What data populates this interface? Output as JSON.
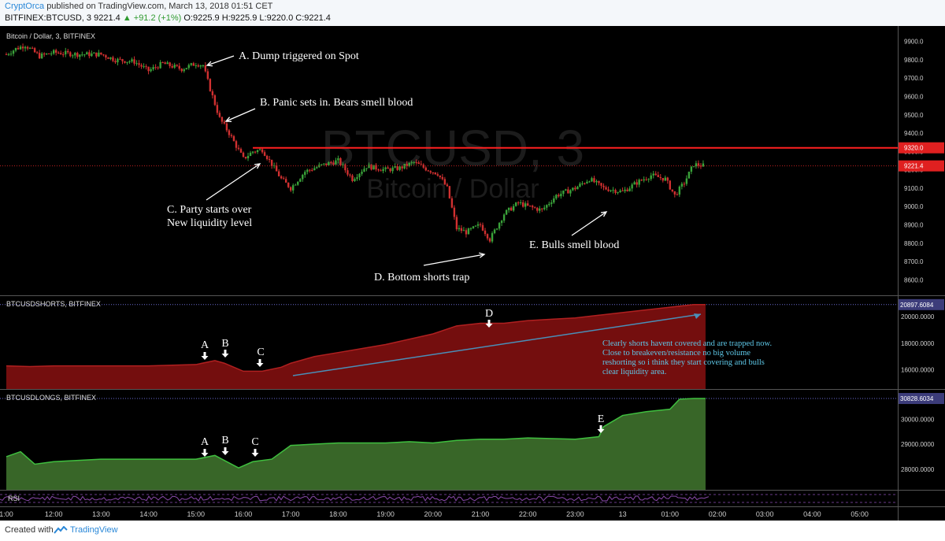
{
  "header": {
    "author": "CryptOrca",
    "published": "published on TradingView.com, March 13, 2018 01:51 CET",
    "symbol_line": "BITFINEX:BTCUSD, 3",
    "price": "9221.4",
    "change": "+91.2 (+1%)",
    "ohlc": "O:9225.9 H:9225.9 L:9220.0 C:9221.4"
  },
  "footer": {
    "created_with": "Created with",
    "brand": "TradingView"
  },
  "colors": {
    "background": "#000000",
    "candle_up": "#3aa33a",
    "candle_down": "#d03030",
    "shorts_fill": "#7a0f0f",
    "longs_fill": "#3b6b2a",
    "resistance": "#ff2020",
    "annotation_text": "#ffffff",
    "note_text": "#5ec8e8",
    "axis_text": "#cfcfcf"
  },
  "chart_data": [
    {
      "type": "candlestick",
      "title": "Bitcoin / Dollar, 3, BITFINEX",
      "watermark": "BTCUSD, 3",
      "watermark_sub": "Bitcoin / Dollar",
      "ylim": [
        8550,
        9950
      ],
      "y_ticks": [
        "9900.0",
        "9800.0",
        "9700.0",
        "9600.0",
        "9500.0",
        "9400.0",
        "9300.0",
        "9200.0",
        "9100.0",
        "9000.0",
        "8900.0",
        "8800.0",
        "8700.0",
        "8600.0"
      ],
      "x_ticks": [
        "1:00",
        "12:00",
        "13:00",
        "14:00",
        "15:00",
        "16:00",
        "17:00",
        "18:00",
        "19:00",
        "20:00",
        "21:00",
        "22:00",
        "23:00",
        "13",
        "01:00",
        "02:00",
        "03:00",
        "04:00",
        "05:00"
      ],
      "x_tick_hours": [
        11,
        12,
        13,
        14,
        15,
        16,
        17,
        18,
        19,
        20,
        21,
        22,
        23,
        24,
        25,
        26,
        27,
        28,
        29
      ],
      "path_hours": [
        11.0,
        11.2,
        11.4,
        11.7,
        12.0,
        12.5,
        13.0,
        13.3,
        13.7,
        14.0,
        14.3,
        14.7,
        15.0,
        15.15,
        15.3,
        15.5,
        15.7,
        16.0,
        16.2,
        16.4,
        16.6,
        16.8,
        17.0,
        17.3,
        17.6,
        18.0,
        18.3,
        18.6,
        19.0,
        19.3,
        19.6,
        19.9,
        20.1,
        20.3,
        20.5,
        20.7,
        21.0,
        21.2,
        21.5,
        21.8,
        22.0,
        22.3,
        22.6,
        23.0,
        23.3,
        23.6,
        24.0,
        24.3,
        24.6,
        24.9,
        25.1,
        25.3,
        25.5,
        25.75
      ],
      "path_prices": [
        9830,
        9860,
        9880,
        9820,
        9840,
        9830,
        9830,
        9800,
        9790,
        9740,
        9780,
        9750,
        9780,
        9770,
        9640,
        9480,
        9400,
        9260,
        9300,
        9310,
        9230,
        9150,
        9100,
        9190,
        9220,
        9250,
        9150,
        9220,
        9200,
        9210,
        9240,
        9200,
        9180,
        9100,
        8880,
        8860,
        8900,
        8820,
        8960,
        9020,
        9000,
        8980,
        9060,
        9100,
        9150,
        9100,
        9080,
        9130,
        9170,
        9150,
        9060,
        9130,
        9230,
        9221
      ],
      "resistance_label": "9320.0",
      "resistance": 9320,
      "last_price_label": "9221.4",
      "last_price": 9221.4,
      "annotations": [
        {
          "text": "A. Dump triggered on Spot"
        },
        {
          "text": "B. Panic sets in. Bears smell blood"
        },
        {
          "text": "C. Party starts over"
        },
        {
          "text": "New liquidity level"
        },
        {
          "text": "D. Bottom shorts trap"
        },
        {
          "text": "E. Bulls smell blood"
        }
      ]
    },
    {
      "type": "area",
      "title": "BTCUSDSHORTS, BITFINEX",
      "ylim": [
        14800,
        21300
      ],
      "y_ticks": [
        "20000.0000",
        "18000.0000",
        "16000.0000"
      ],
      "last_value_label": "20897.6084",
      "x_hours": [
        11.0,
        11.5,
        12.0,
        13.0,
        14.0,
        14.5,
        15.0,
        15.4,
        15.6,
        16.0,
        16.4,
        16.8,
        17.0,
        17.5,
        18.0,
        18.5,
        19.0,
        19.5,
        20.0,
        20.5,
        21.0,
        21.5,
        22.0,
        22.5,
        23.0,
        23.5,
        24.0,
        24.5,
        25.0,
        25.5,
        25.75
      ],
      "values": [
        16300,
        16250,
        16300,
        16300,
        16300,
        16350,
        16400,
        16700,
        16500,
        15900,
        15900,
        16200,
        16500,
        17000,
        17300,
        17600,
        17900,
        18300,
        18700,
        19300,
        19500,
        19500,
        19700,
        19800,
        19900,
        20100,
        20300,
        20500,
        20700,
        20900,
        20897.6
      ],
      "letters": [
        "A",
        "B",
        "C",
        "D"
      ],
      "note": [
        "Clearly shorts havent covered and are trapped now.",
        "Close to breakeven/resistance no big volume",
        "reshorting so i think they start covering and bulls",
        "clear liquidity area."
      ]
    },
    {
      "type": "area",
      "title": "BTCUSDLONGS, BITFINEX",
      "ylim": [
        27300,
        31050
      ],
      "y_ticks": [
        "30000.0000",
        "29000.0000",
        "28000.0000"
      ],
      "last_value_label": "30828.6034",
      "x_hours": [
        11.0,
        11.3,
        11.6,
        12.0,
        13.0,
        14.0,
        15.0,
        15.4,
        15.6,
        15.9,
        16.2,
        16.6,
        17.0,
        17.5,
        18.0,
        18.5,
        19.0,
        19.5,
        20.0,
        20.5,
        21.0,
        21.5,
        22.0,
        23.0,
        23.5,
        23.6,
        24.0,
        24.5,
        25.0,
        25.2,
        25.5,
        25.75
      ],
      "values": [
        28500,
        28700,
        28200,
        28300,
        28400,
        28400,
        28400,
        28550,
        28350,
        28050,
        28300,
        28400,
        28950,
        29000,
        29050,
        29050,
        29050,
        29100,
        29050,
        29150,
        29200,
        29200,
        29250,
        29200,
        29300,
        29700,
        30150,
        30300,
        30400,
        30800,
        30830,
        30828.6
      ],
      "letters": [
        "A",
        "B",
        "C",
        "E"
      ]
    },
    {
      "type": "line",
      "title": "RSI"
    }
  ]
}
